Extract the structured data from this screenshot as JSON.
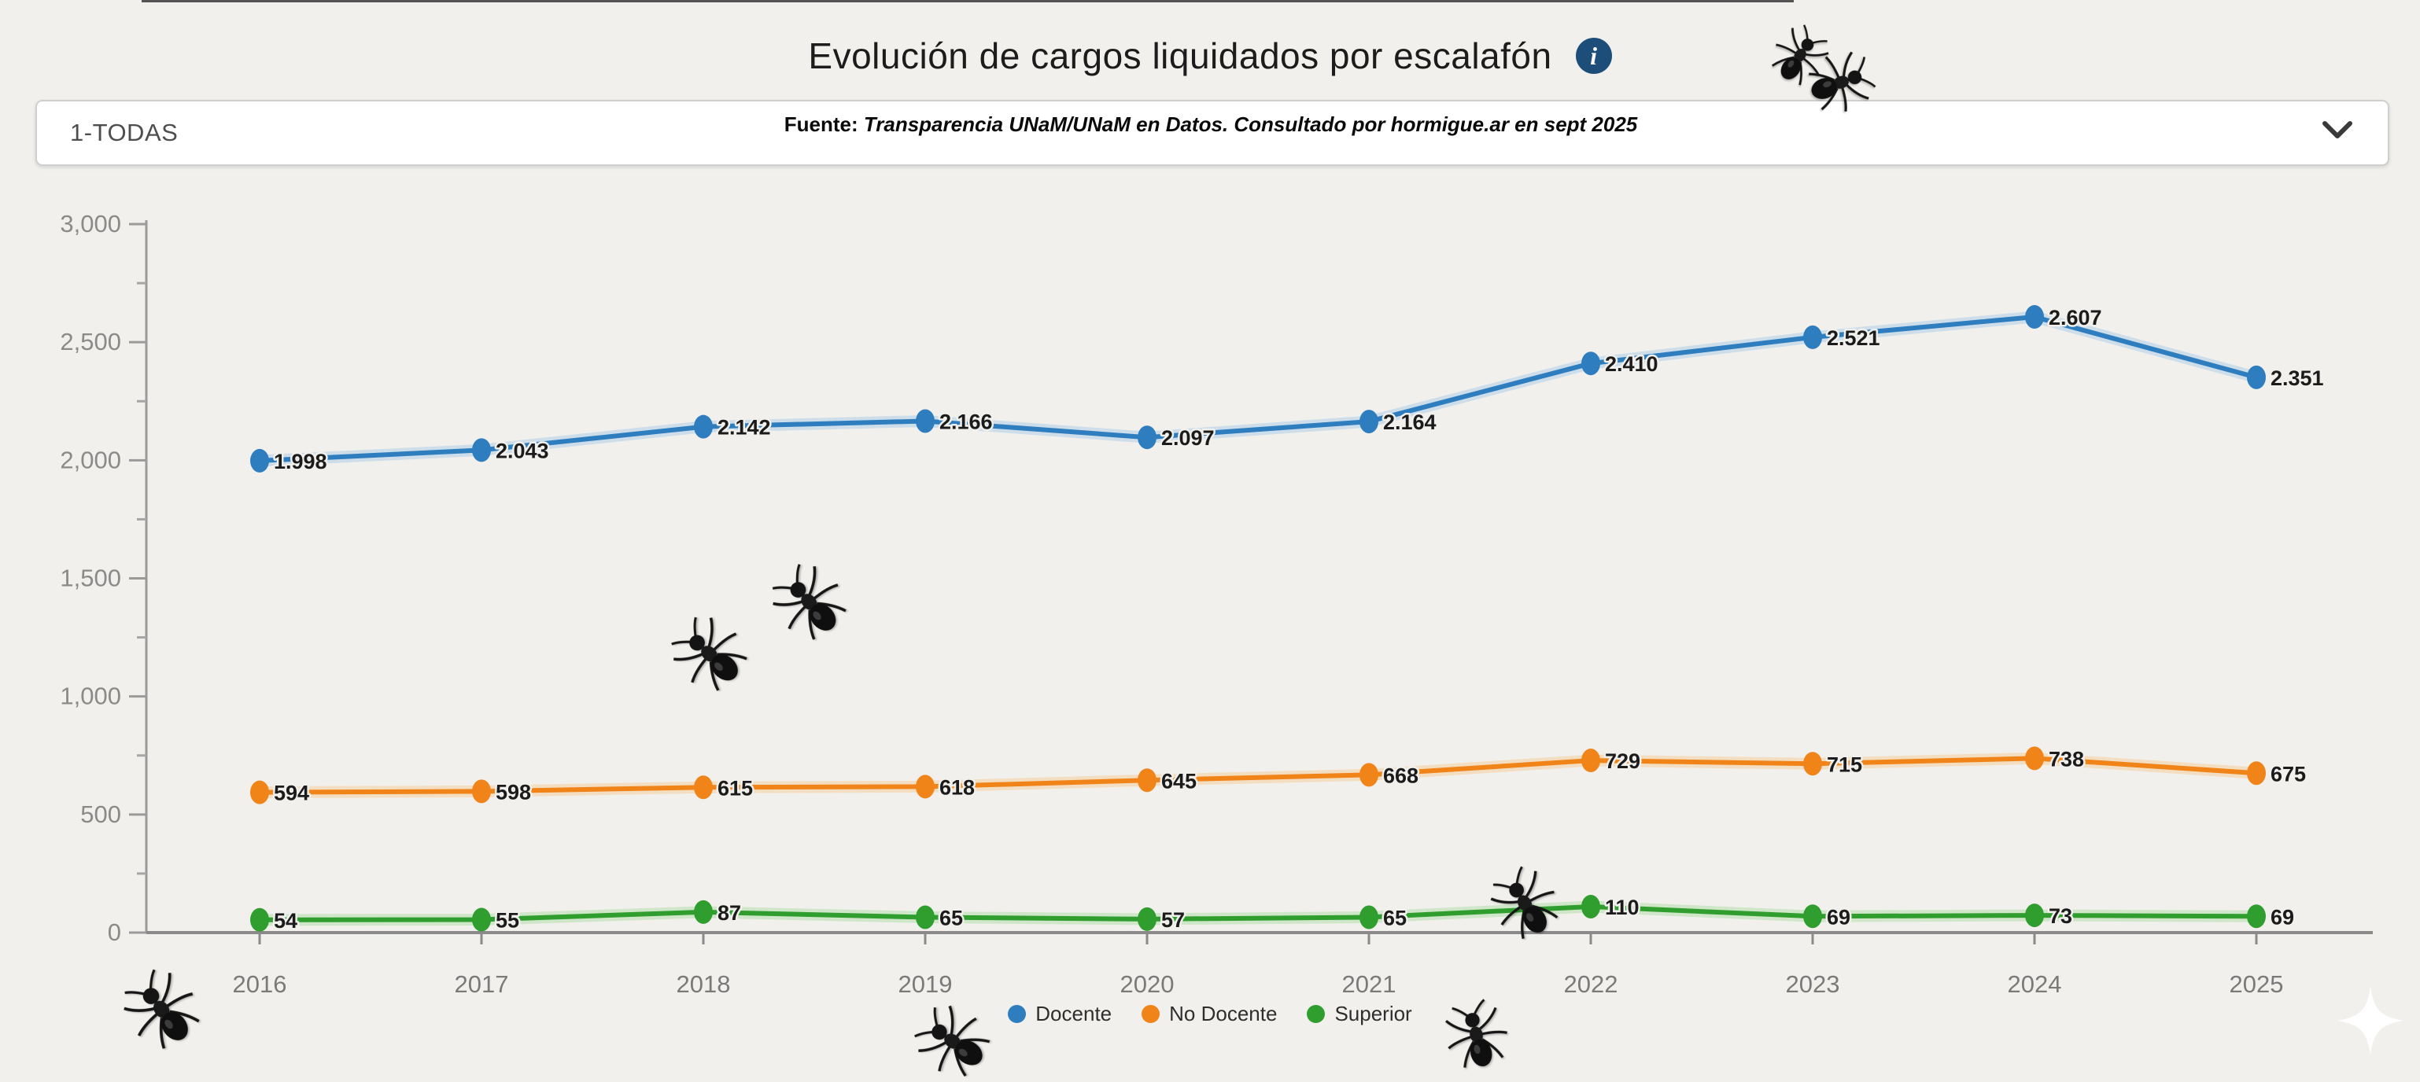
{
  "header": {
    "title": "Evolución de cargos liquidados por escalafón",
    "info_glyph": "i"
  },
  "filter": {
    "selected_option": "1-TODAS",
    "source_prefix": "Fuente:",
    "source_note": "Transparencia UNaM/UNaM en Datos. Consultado por hormigue.ar en sept 2025"
  },
  "chart_data": {
    "type": "line",
    "title": "Evolución de cargos liquidados por escalafón",
    "x": [
      2016,
      2017,
      2018,
      2019,
      2020,
      2021,
      2022,
      2023,
      2024,
      2025
    ],
    "x_labels": [
      "2016",
      "2017",
      "2018",
      "2019",
      "2020",
      "2021",
      "2022",
      "2023",
      "2024",
      "2025"
    ],
    "series": [
      {
        "name": "Docente",
        "color": "#2d7dbf",
        "halo": "#aecfe8",
        "values": [
          1998,
          2043,
          2142,
          2166,
          2097,
          2164,
          2410,
          2521,
          2607,
          2351
        ],
        "labels": [
          "1.998",
          "2.043",
          "2.142",
          "2.166",
          "2.097",
          "2.164",
          "2.410",
          "2.521",
          "2.607",
          "2.351"
        ]
      },
      {
        "name": "No Docente",
        "color": "#f08419",
        "halo": "#f6cf9e",
        "values": [
          594,
          598,
          615,
          618,
          645,
          668,
          729,
          715,
          738,
          675
        ],
        "labels": [
          "594",
          "598",
          "615",
          "618",
          "645",
          "668",
          "729",
          "715",
          "738",
          "675"
        ]
      },
      {
        "name": "Superior",
        "color": "#2f9e2f",
        "halo": "#b4dfac",
        "values": [
          54,
          55,
          87,
          65,
          57,
          65,
          110,
          69,
          73,
          69
        ],
        "labels": [
          "54",
          "55",
          "87",
          "65",
          "57",
          "65",
          "110",
          "69",
          "73",
          "69"
        ]
      }
    ],
    "ylim": [
      0,
      3000
    ],
    "yticks": [
      0,
      500,
      1000,
      1500,
      2000,
      2500,
      3000
    ],
    "ytick_labels": [
      "0",
      "500",
      "1,000",
      "1,500",
      "2,000",
      "2,500",
      "3,000"
    ],
    "minor_yticks": [
      250,
      750,
      1250,
      1750,
      2250,
      2750
    ],
    "grid": false,
    "legend_position": "bottom"
  },
  "decorations": {
    "ant_icon": "ant",
    "sparkle_icon": "sparkle"
  }
}
